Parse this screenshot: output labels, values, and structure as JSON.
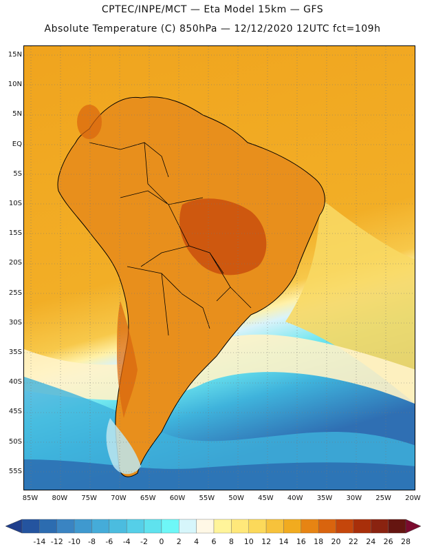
{
  "title": {
    "line1": "CPTEC/INPE/MCT —   Eta Model 15km — GFS",
    "line2": "Absolute Temperature (C) 850hPa — 12/12/2020 12UTC fct=109h"
  },
  "lat_labels": [
    "15N",
    "10N",
    "5N",
    "EQ",
    "5S",
    "10S",
    "15S",
    "20S",
    "25S",
    "30S",
    "35S",
    "40S",
    "45S",
    "50S",
    "55S"
  ],
  "lon_labels": [
    "85W",
    "80W",
    "75W",
    "70W",
    "65W",
    "60W",
    "55W",
    "50W",
    "45W",
    "40W",
    "35W",
    "30W",
    "25W",
    "20W"
  ],
  "colorbar": {
    "labels": [
      "-14",
      "-12",
      "-10",
      "-8",
      "-6",
      "-4",
      "-2",
      "0",
      "2",
      "4",
      "6",
      "8",
      "10",
      "12",
      "14",
      "16",
      "18",
      "20",
      "22",
      "24",
      "26",
      "28"
    ],
    "colors": [
      "#1f3e8c",
      "#24549f",
      "#2c6cb0",
      "#3a84c2",
      "#3f99cf",
      "#45acd9",
      "#4bbcdf",
      "#55cfe8",
      "#5fe2ee",
      "#6ef7f7",
      "#d6f6fb",
      "#fff8e6",
      "#fff49a",
      "#ffe87a",
      "#fcd95a",
      "#f7c23b",
      "#f1ab1f",
      "#e78413",
      "#d9640e",
      "#c5460b",
      "#a82f0a",
      "#8a2310",
      "#651510",
      "#7a0a2e"
    ]
  }
}
